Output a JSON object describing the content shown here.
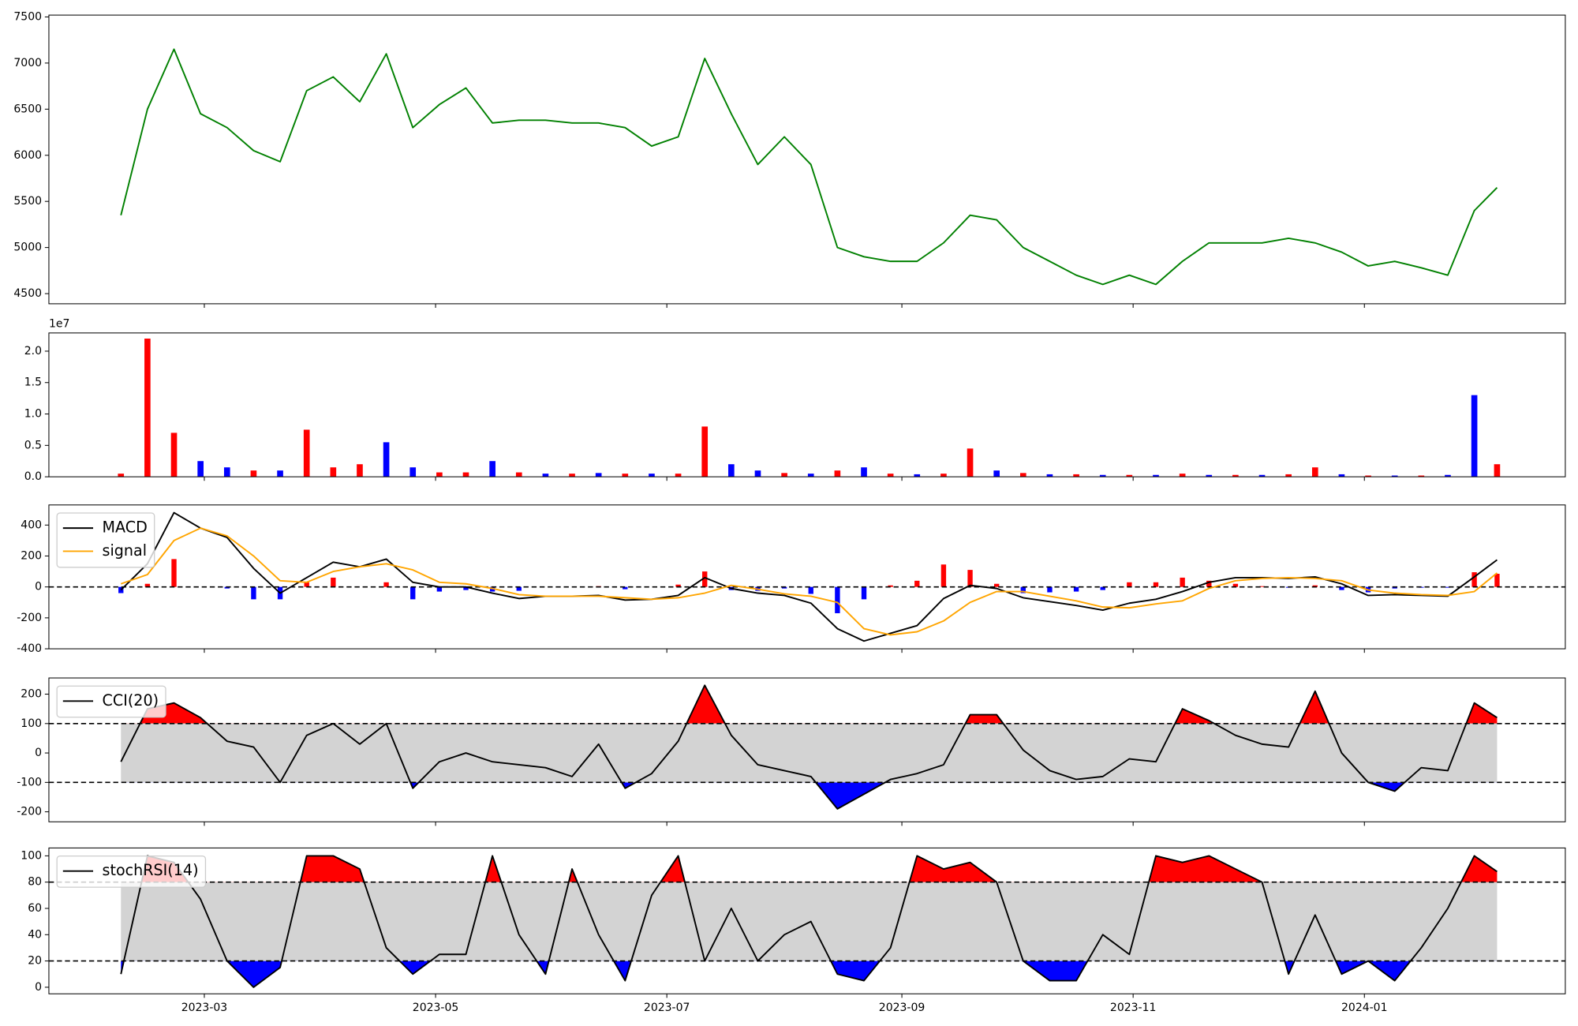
{
  "chart_data": [
    {
      "type": "line",
      "x": [
        37,
        44,
        51,
        58,
        65,
        72,
        79,
        86,
        93,
        100,
        107,
        114,
        121,
        128,
        135,
        142,
        149,
        156,
        163,
        170,
        177,
        184,
        191,
        198,
        205,
        212,
        219,
        226,
        233,
        240,
        247,
        254,
        261,
        268,
        275,
        282,
        289,
        296,
        303,
        310,
        317,
        324,
        331,
        338,
        345,
        352,
        359,
        366,
        373,
        380,
        387,
        394,
        400
      ],
      "xlim": [
        18,
        418
      ],
      "series": [
        {
          "color": "green",
          "values": [
            5350,
            6500,
            7150,
            6450,
            6300,
            6050,
            5930,
            6700,
            6850,
            6580,
            7100,
            6300,
            6550,
            6730,
            6350,
            6380,
            6380,
            6350,
            6350,
            6300,
            6100,
            6200,
            7050,
            6450,
            5900,
            6200,
            5900,
            5000,
            4900,
            4850,
            4850,
            5050,
            5350,
            5300,
            5000,
            4850,
            4700,
            4600,
            4700,
            4600,
            4850,
            5050,
            5050,
            5050,
            5100,
            5050,
            4950,
            4800,
            4850,
            4780,
            4700,
            5400,
            5650
          ]
        }
      ],
      "ylim": [
        4390,
        7520
      ],
      "yticks": [
        4500,
        5000,
        5500,
        6000,
        6500,
        7000,
        7500
      ]
    },
    {
      "type": "bar",
      "x": [
        37,
        44,
        51,
        58,
        65,
        72,
        79,
        86,
        93,
        100,
        107,
        114,
        121,
        128,
        135,
        142,
        149,
        156,
        163,
        170,
        177,
        184,
        191,
        198,
        205,
        212,
        219,
        226,
        233,
        240,
        247,
        254,
        261,
        268,
        275,
        282,
        289,
        296,
        303,
        310,
        317,
        324,
        331,
        338,
        345,
        352,
        359,
        366,
        373,
        380,
        387,
        394,
        400
      ],
      "xlim": [
        18,
        418
      ],
      "values": [
        0.05,
        2.2,
        0.7,
        0.25,
        0.15,
        0.1,
        0.1,
        0.75,
        0.15,
        0.2,
        0.55,
        0.15,
        0.07,
        0.07,
        0.25,
        0.07,
        0.05,
        0.05,
        0.06,
        0.05,
        0.05,
        0.05,
        0.8,
        0.2,
        0.1,
        0.06,
        0.05,
        0.1,
        0.15,
        0.05,
        0.04,
        0.05,
        0.45,
        0.1,
        0.06,
        0.04,
        0.04,
        0.03,
        0.03,
        0.03,
        0.05,
        0.03,
        0.03,
        0.03,
        0.04,
        0.15,
        0.04,
        0.02,
        0.02,
        0.02,
        0.03,
        1.3,
        0.2
      ],
      "colors": [
        "red",
        "red",
        "red",
        "blue",
        "blue",
        "red",
        "blue",
        "red",
        "red",
        "red",
        "blue",
        "blue",
        "red",
        "red",
        "blue",
        "red",
        "blue",
        "red",
        "blue",
        "red",
        "blue",
        "red",
        "red",
        "blue",
        "blue",
        "red",
        "blue",
        "red",
        "blue",
        "red",
        "blue",
        "red",
        "red",
        "blue",
        "red",
        "blue",
        "red",
        "blue",
        "red",
        "blue",
        "red",
        "blue",
        "red",
        "blue",
        "red",
        "red",
        "blue",
        "red",
        "blue",
        "red",
        "blue",
        "blue",
        "red"
      ],
      "ylim": [
        0,
        2.29
      ],
      "yticks": [
        {
          "value": 0,
          "label": "0.0"
        },
        0.5,
        {
          "value": 1,
          "label": "1.0"
        },
        1.5,
        {
          "value": 2,
          "label": "2.0"
        }
      ],
      "offset_label": "1e7"
    },
    {
      "type": "macd",
      "x": [
        37,
        44,
        51,
        58,
        65,
        72,
        79,
        86,
        93,
        100,
        107,
        114,
        121,
        128,
        135,
        142,
        149,
        156,
        163,
        170,
        177,
        184,
        191,
        198,
        205,
        212,
        219,
        226,
        233,
        240,
        247,
        254,
        261,
        268,
        275,
        282,
        289,
        296,
        303,
        310,
        317,
        324,
        331,
        338,
        345,
        352,
        359,
        366,
        373,
        380,
        387,
        394,
        400
      ],
      "xlim": [
        18,
        418
      ],
      "series": [
        {
          "name": "MACD",
          "color": "black",
          "values": [
            -20,
            150,
            480,
            380,
            320,
            120,
            -40,
            60,
            160,
            130,
            180,
            30,
            0,
            0,
            -40,
            -75,
            -60,
            -60,
            -55,
            -85,
            -80,
            -55,
            60,
            -10,
            -40,
            -55,
            -105,
            -270,
            -350,
            -300,
            -250,
            -75,
            10,
            -10,
            -70,
            -95,
            -120,
            -150,
            -105,
            -80,
            -30,
            30,
            60,
            60,
            55,
            65,
            20,
            -55,
            -50,
            -55,
            -60,
            65,
            175
          ]
        },
        {
          "name": "signal",
          "color": "orange",
          "values": [
            20,
            80,
            300,
            380,
            330,
            200,
            40,
            30,
            100,
            130,
            150,
            110,
            30,
            20,
            -10,
            -50,
            -60,
            -60,
            -60,
            -70,
            -80,
            -70,
            -40,
            10,
            -15,
            -45,
            -60,
            -100,
            -270,
            -310,
            -290,
            -220,
            -100,
            -30,
            -30,
            -60,
            -90,
            -130,
            -135,
            -110,
            -90,
            -10,
            40,
            55,
            60,
            55,
            40,
            -20,
            -40,
            -50,
            -55,
            -30,
            90
          ]
        }
      ],
      "histogram": {
        "values": [
          -40,
          20,
          180,
          0,
          -10,
          -80,
          -80,
          30,
          60,
          0,
          30,
          -80,
          -30,
          -20,
          -30,
          -25,
          0,
          0,
          5,
          -15,
          0,
          15,
          100,
          -20,
          -25,
          -10,
          -45,
          -170,
          -80,
          10,
          40,
          145,
          110,
          20,
          -40,
          -35,
          -30,
          -20,
          30,
          30,
          60,
          40,
          20,
          5,
          -5,
          10,
          -20,
          -35,
          -10,
          -5,
          -5,
          95,
          85
        ],
        "up_color": "red",
        "down_color": "blue"
      },
      "hlines": [
        0
      ],
      "ylim": [
        -400,
        530
      ],
      "yticks": [
        -400,
        -200,
        0,
        200,
        400
      ],
      "legend": "upper left"
    },
    {
      "type": "oscillator",
      "x": [
        37,
        44,
        51,
        58,
        65,
        72,
        79,
        86,
        93,
        100,
        107,
        114,
        121,
        128,
        135,
        142,
        149,
        156,
        163,
        170,
        177,
        184,
        191,
        198,
        205,
        212,
        219,
        226,
        233,
        240,
        247,
        254,
        261,
        268,
        275,
        282,
        289,
        296,
        303,
        310,
        317,
        324,
        331,
        338,
        345,
        352,
        359,
        366,
        373,
        380,
        387,
        394,
        400
      ],
      "xlim": [
        18,
        418
      ],
      "series": [
        {
          "name": "CCI(20)",
          "color": "black",
          "values": [
            -30,
            150,
            170,
            120,
            40,
            20,
            -100,
            60,
            100,
            30,
            100,
            -120,
            -30,
            0,
            -30,
            -40,
            -50,
            -80,
            30,
            -120,
            -70,
            40,
            230,
            60,
            -40,
            -60,
            -80,
            -190,
            -140,
            -90,
            -70,
            -40,
            130,
            130,
            10,
            -60,
            -90,
            -80,
            -20,
            -30,
            150,
            110,
            60,
            30,
            20,
            210,
            0,
            -100,
            -130,
            -50,
            -60,
            170,
            120
          ]
        }
      ],
      "thresholds": [
        -100,
        100
      ],
      "band_color": "lightgray",
      "upper_color": "red",
      "lower_color": "blue",
      "ylim": [
        -234,
        255
      ],
      "yticks": [
        -200,
        -100,
        0,
        100,
        200
      ],
      "legend": "upper left"
    },
    {
      "type": "oscillator",
      "x": [
        37,
        44,
        51,
        58,
        65,
        72,
        79,
        86,
        93,
        100,
        107,
        114,
        121,
        128,
        135,
        142,
        149,
        156,
        163,
        170,
        177,
        184,
        191,
        198,
        205,
        212,
        219,
        226,
        233,
        240,
        247,
        254,
        261,
        268,
        275,
        282,
        289,
        296,
        303,
        310,
        317,
        324,
        331,
        338,
        345,
        352,
        359,
        366,
        373,
        380,
        387,
        394,
        400
      ],
      "xlim": [
        18,
        418
      ],
      "series": [
        {
          "name": "stochRSI(14)",
          "color": "black",
          "values": [
            10,
            100,
            95,
            67,
            20,
            0,
            15,
            100,
            100,
            90,
            30,
            10,
            25,
            25,
            100,
            40,
            10,
            90,
            40,
            5,
            70,
            100,
            20,
            60,
            20,
            40,
            50,
            10,
            5,
            30,
            100,
            90,
            95,
            80,
            20,
            5,
            5,
            40,
            25,
            100,
            95,
            100,
            90,
            80,
            10,
            55,
            10,
            20,
            5,
            30,
            60,
            100,
            88
          ]
        }
      ],
      "thresholds": [
        20,
        80
      ],
      "band_color": "lightgray",
      "upper_color": "red",
      "lower_color": "blue",
      "ylim": [
        -5,
        106
      ],
      "yticks": [
        0,
        20,
        40,
        60,
        80,
        100
      ],
      "legend": "upper left",
      "xticks": [
        {
          "value": 59,
          "label": "2023-03"
        },
        {
          "value": 120,
          "label": "2023-05"
        },
        {
          "value": 181,
          "label": "2023-07"
        },
        {
          "value": 243,
          "label": "2023-09"
        },
        {
          "value": 304,
          "label": "2023-11"
        },
        {
          "value": 365,
          "label": "2024-01"
        }
      ]
    }
  ]
}
